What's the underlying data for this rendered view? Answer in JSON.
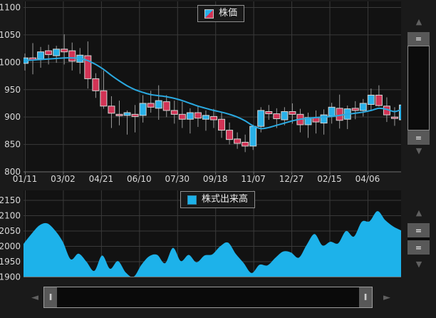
{
  "colors": {
    "background": "#1a1a1a",
    "plot_background": "#121212",
    "grid": "#3a3a3a",
    "axis_line": "#6f6f6f",
    "tick_text": "#d9d9d9",
    "wick": "#9a9a9a",
    "candle_border": "#d6d6d6",
    "up": "#28b1e8",
    "down": "#d23355",
    "ma_line": "#2aa9e0",
    "volume_fill": "#1db2ea"
  },
  "glyphs": {
    "up_arrow": "▲",
    "down_arrow": "▼",
    "left_arrow": "◄",
    "right_arrow": "►",
    "grip_horizontal": "=",
    "grip_vertical": "‖"
  },
  "chart_data": [
    {
      "type": "candlestick",
      "title": "株価",
      "legend_position": "top-center",
      "grid": true,
      "ylim": [
        800,
        1100
      ],
      "y_ticks": [
        1100,
        1050,
        1000,
        950,
        900,
        850,
        800
      ],
      "x_tick_labels": [
        "01/11",
        "03/02",
        "04/21",
        "06/10",
        "07/30",
        "09/18",
        "11/07",
        "12/27",
        "02/15",
        "04/06"
      ],
      "up_color": "#28b1e8",
      "down_color": "#d23355",
      "candles_ohlc": [
        [
          998,
          1016,
          985,
          1008
        ],
        [
          1008,
          1035,
          978,
          1004
        ],
        [
          1006,
          1028,
          990,
          1019
        ],
        [
          1021,
          1032,
          996,
          1014
        ],
        [
          1012,
          1030,
          999,
          1024
        ],
        [
          1024,
          1051,
          996,
          1019
        ],
        [
          1021,
          1036,
          985,
          1002
        ],
        [
          1000,
          1026,
          979,
          1013
        ],
        [
          1012,
          1038,
          952,
          970
        ],
        [
          970,
          980,
          935,
          948
        ],
        [
          948,
          985,
          915,
          920
        ],
        [
          920,
          938,
          880,
          907
        ],
        [
          905,
          930,
          885,
          903
        ],
        [
          903,
          912,
          868,
          908
        ],
        [
          905,
          922,
          872,
          901
        ],
        [
          903,
          940,
          890,
          925
        ],
        [
          925,
          948,
          908,
          918
        ],
        [
          916,
          958,
          895,
          930
        ],
        [
          928,
          940,
          900,
          912
        ],
        [
          912,
          930,
          888,
          905
        ],
        [
          905,
          928,
          880,
          896
        ],
        [
          896,
          916,
          870,
          908
        ],
        [
          908,
          920,
          882,
          898
        ],
        [
          896,
          912,
          875,
          903
        ],
        [
          901,
          915,
          880,
          895
        ],
        [
          896,
          910,
          862,
          876
        ],
        [
          876,
          890,
          850,
          859
        ],
        [
          860,
          872,
          842,
          852
        ],
        [
          854,
          868,
          836,
          847
        ],
        [
          847,
          886,
          840,
          883
        ],
        [
          883,
          918,
          872,
          912
        ],
        [
          910,
          922,
          895,
          906
        ],
        [
          906,
          916,
          880,
          897
        ],
        [
          895,
          918,
          885,
          910
        ],
        [
          910,
          925,
          888,
          905
        ],
        [
          905,
          915,
          872,
          886
        ],
        [
          886,
          908,
          862,
          899
        ],
        [
          899,
          912,
          870,
          891
        ],
        [
          889,
          914,
          868,
          904
        ],
        [
          902,
          926,
          888,
          918
        ],
        [
          916,
          941,
          879,
          894
        ],
        [
          896,
          921,
          878,
          915
        ],
        [
          916,
          929,
          896,
          912
        ],
        [
          912,
          933,
          901,
          925
        ],
        [
          923,
          952,
          911,
          940
        ],
        [
          940,
          958,
          919,
          921
        ],
        [
          920,
          936,
          891,
          904
        ],
        [
          900,
          918,
          884,
          899
        ],
        [
          895,
          931,
          883,
          922
        ]
      ],
      "moving_average": [
        1003,
        1004,
        1005,
        1006,
        1007,
        1008,
        1008,
        1007,
        1003,
        996,
        987,
        976,
        966,
        957,
        950,
        945,
        941,
        939,
        937,
        934,
        930,
        925,
        920,
        916,
        912,
        909,
        905,
        900,
        893,
        884,
        879,
        881,
        885,
        889,
        893,
        896,
        898,
        899,
        900,
        901,
        903,
        905,
        907,
        909,
        912,
        916,
        914,
        910,
        915
      ]
    },
    {
      "type": "area",
      "title": "株式出来高",
      "legend_position": "top-center",
      "grid": true,
      "ylim": [
        1900,
        2150
      ],
      "y_ticks": [
        2150,
        2100,
        2050,
        2000,
        1950,
        1900
      ],
      "fill_color": "#1db2ea",
      "values": [
        2008,
        2040,
        2068,
        2075,
        2052,
        2015,
        1958,
        1976,
        1950,
        1920,
        1970,
        1927,
        1952,
        1915,
        1901,
        1940,
        1968,
        1972,
        1945,
        1995,
        1952,
        1972,
        1948,
        1970,
        1974,
        2000,
        2012,
        1975,
        1945,
        1913,
        1940,
        1938,
        1962,
        1983,
        1980,
        1963,
        2005,
        2040,
        2003,
        2015,
        2010,
        2050,
        2032,
        2080,
        2082,
        2115,
        2085,
        2065,
        2052
      ]
    }
  ],
  "scrollbars": {
    "price_vertical": {
      "top_grip": "=",
      "bottom_grip": "="
    },
    "volume_vertical": {
      "top_grip": "=",
      "bottom_grip": "="
    },
    "horizontal": {
      "left_grip": "‖",
      "right_grip": "‖"
    }
  }
}
